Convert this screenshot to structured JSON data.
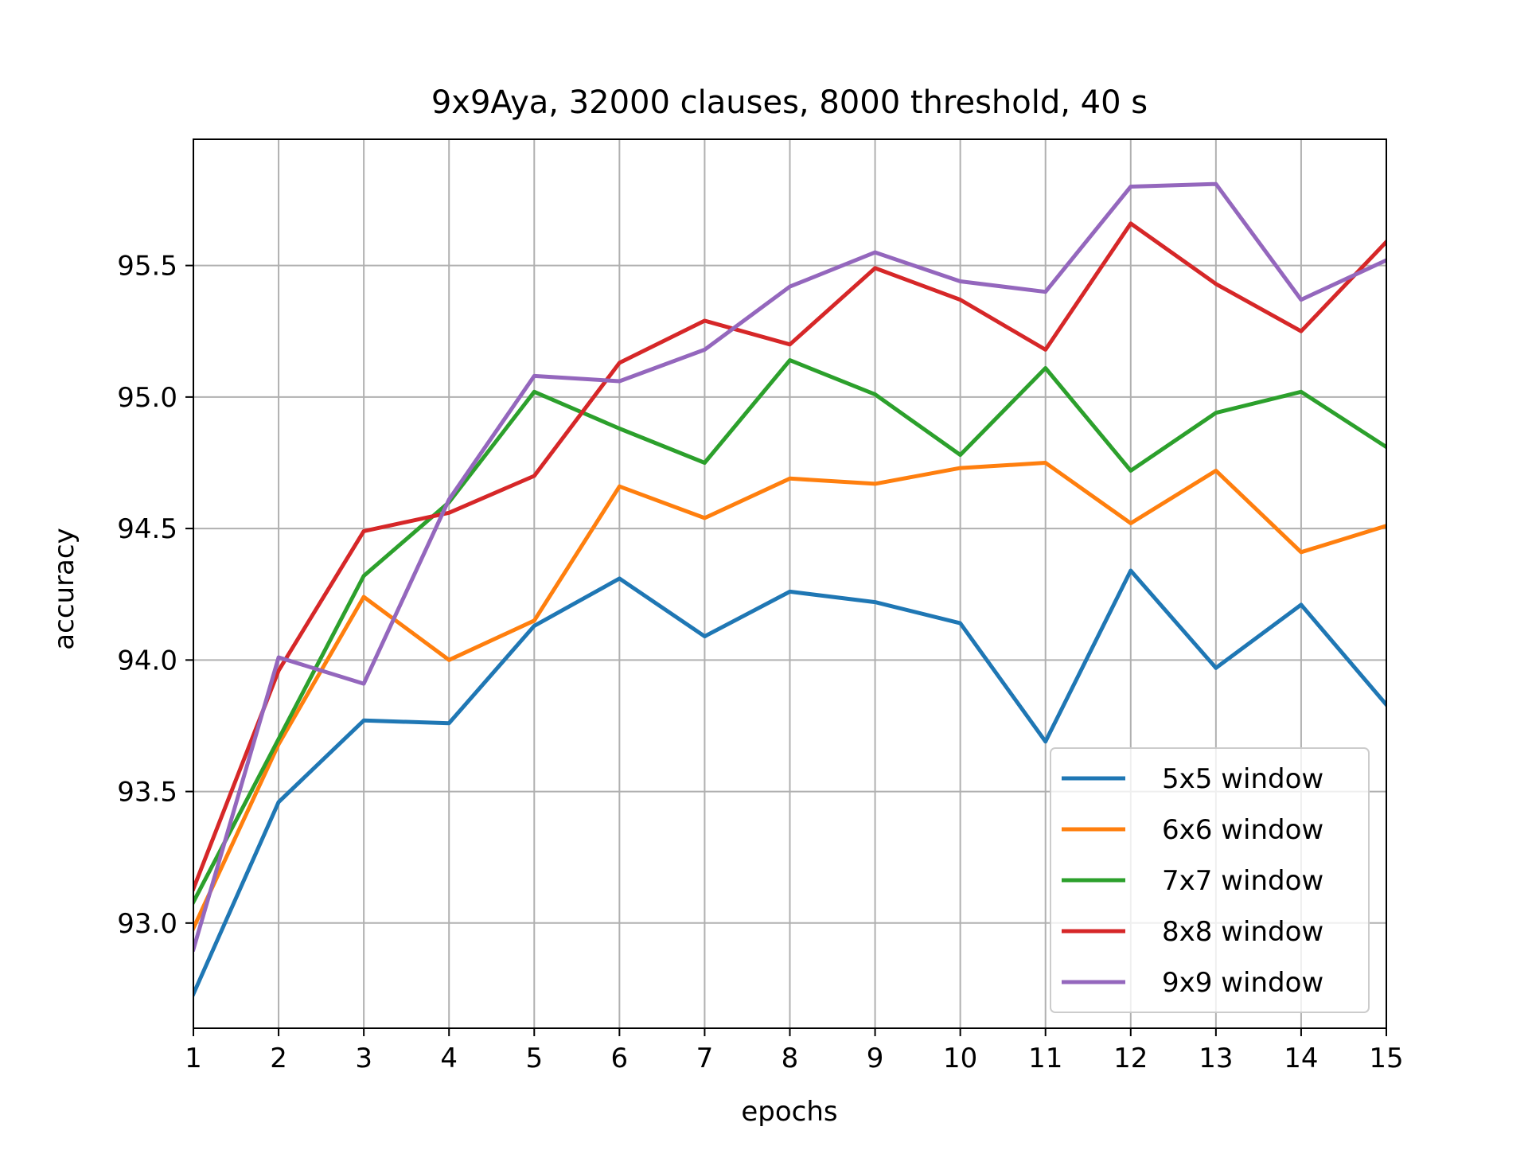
{
  "chart_data": {
    "type": "line",
    "title": "9x9Aya, 32000 clauses, 8000 threshold, 40 s",
    "xlabel": "epochs",
    "ylabel": "accuracy",
    "xlim": [
      1,
      15
    ],
    "ylim": [
      92.6,
      95.98
    ],
    "xticks": [
      1,
      2,
      3,
      4,
      5,
      6,
      7,
      8,
      9,
      10,
      11,
      12,
      13,
      14,
      15
    ],
    "yticks": [
      "93.0",
      "93.5",
      "94.0",
      "94.5",
      "95.0",
      "95.5"
    ],
    "grid": true,
    "legend_position": "lower-right",
    "x": [
      1,
      2,
      3,
      4,
      5,
      6,
      7,
      8,
      9,
      10,
      11,
      12,
      13,
      14,
      15
    ],
    "series": [
      {
        "name": "5x5 window",
        "color": "#1f77b4",
        "values": [
          92.73,
          93.46,
          93.77,
          93.76,
          94.13,
          94.31,
          94.09,
          94.26,
          94.22,
          94.14,
          93.69,
          94.34,
          93.97,
          94.21,
          93.83
        ]
      },
      {
        "name": "6x6 window",
        "color": "#ff7f0e",
        "values": [
          92.98,
          93.68,
          94.24,
          94.0,
          94.15,
          94.66,
          94.54,
          94.69,
          94.67,
          94.73,
          94.75,
          94.52,
          94.72,
          94.41,
          94.51
        ]
      },
      {
        "name": "7x7 window",
        "color": "#2ca02c",
        "values": [
          93.08,
          93.7,
          94.32,
          94.6,
          95.02,
          94.88,
          94.75,
          95.14,
          95.01,
          94.78,
          95.11,
          94.72,
          94.94,
          95.02,
          94.81
        ]
      },
      {
        "name": "8x8 window",
        "color": "#d62728",
        "values": [
          93.13,
          93.96,
          94.49,
          94.56,
          94.7,
          95.13,
          95.29,
          95.2,
          95.49,
          95.37,
          95.18,
          95.66,
          95.43,
          95.25,
          95.59
        ]
      },
      {
        "name": "9x9 window",
        "color": "#9467bd",
        "values": [
          92.9,
          94.01,
          93.91,
          94.61,
          95.08,
          95.06,
          95.18,
          95.42,
          95.55,
          95.44,
          95.4,
          95.8,
          95.81,
          95.37,
          95.52
        ]
      }
    ]
  }
}
